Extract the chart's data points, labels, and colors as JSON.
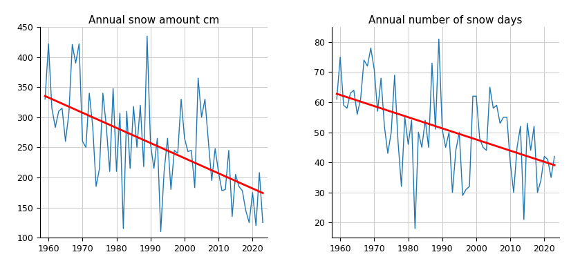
{
  "title1": "Annual snow amount cm",
  "title2": "Annual number of snow days",
  "years": [
    1959,
    1960,
    1961,
    1962,
    1963,
    1964,
    1965,
    1966,
    1967,
    1968,
    1969,
    1970,
    1971,
    1972,
    1973,
    1974,
    1975,
    1976,
    1977,
    1978,
    1979,
    1980,
    1981,
    1982,
    1983,
    1984,
    1985,
    1986,
    1987,
    1988,
    1989,
    1990,
    1991,
    1992,
    1993,
    1994,
    1995,
    1996,
    1997,
    1998,
    1999,
    2000,
    2001,
    2002,
    2003,
    2004,
    2005,
    2006,
    2007,
    2008,
    2009,
    2010,
    2011,
    2012,
    2013,
    2014,
    2015,
    2016,
    2017,
    2018,
    2019,
    2020,
    2021,
    2022,
    2023
  ],
  "snow_cm": [
    330,
    422,
    315,
    283,
    310,
    315,
    260,
    307,
    421,
    390,
    422,
    260,
    250,
    340,
    285,
    185,
    215,
    340,
    285,
    210,
    348,
    210,
    307,
    115,
    310,
    215,
    318,
    250,
    320,
    218,
    435,
    255,
    215,
    265,
    110,
    210,
    265,
    180,
    245,
    240,
    330,
    265,
    243,
    245,
    183,
    365,
    300,
    330,
    260,
    195,
    248,
    208,
    178,
    180,
    245,
    135,
    205,
    185,
    178,
    145,
    125,
    175,
    120,
    208,
    125
  ],
  "snow_days": [
    61,
    75,
    59,
    58,
    63,
    64,
    56,
    61,
    74,
    72,
    78,
    71,
    57,
    68,
    52,
    43,
    50,
    69,
    47,
    32,
    55,
    46,
    54,
    18,
    50,
    45,
    54,
    45,
    73,
    51,
    81,
    51,
    45,
    50,
    30,
    44,
    50,
    29,
    31,
    32,
    62,
    62,
    48,
    45,
    44,
    65,
    58,
    59,
    53,
    55,
    55,
    40,
    30,
    45,
    52,
    21,
    53,
    44,
    52,
    30,
    34,
    42,
    41,
    35,
    42
  ],
  "line_color": "#1f77b4",
  "trend_color": "red",
  "bg_color": "white",
  "grid_color": "#cccccc",
  "ylim1": [
    100,
    450
  ],
  "ylim2": [
    15,
    85
  ],
  "yticks1": [
    100,
    150,
    200,
    250,
    300,
    350,
    400,
    450
  ],
  "yticks2": [
    20,
    30,
    40,
    50,
    60,
    70,
    80
  ],
  "xticks": [
    1960,
    1970,
    1980,
    1990,
    2000,
    2010,
    2020
  ],
  "xlim": [
    1957.5,
    2024.5
  ],
  "figsize": [
    8.26,
    3.91
  ],
  "dpi": 100
}
